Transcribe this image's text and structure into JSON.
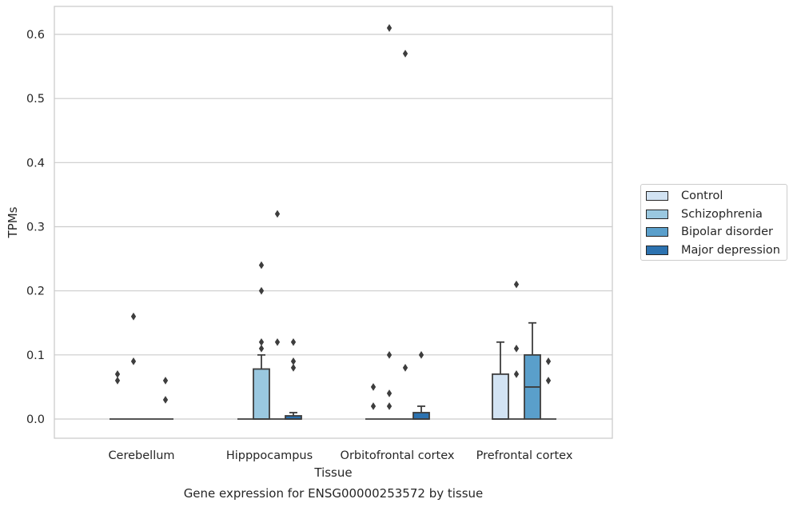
{
  "chart_data": {
    "type": "box",
    "title": "Gene expression for ENSG00000253572 by tissue",
    "xlabel": "Tissue",
    "ylabel": "TPMs",
    "ylim": [
      -0.03,
      0.64
    ],
    "yticks": [
      "0.0",
      "0.1",
      "0.2",
      "0.3",
      "0.4",
      "0.5",
      "0.6"
    ],
    "ytick_values": [
      0,
      0.1,
      0.2,
      0.3,
      0.4,
      0.5,
      0.6
    ],
    "grid": "horizontal",
    "legend_position": "right",
    "categories": [
      "Cerebellum",
      "Hipppocampus",
      "Orbitofrontal cortex",
      "Prefrontal cortex"
    ],
    "series": [
      {
        "name": "Control",
        "color": "#d2e3f3",
        "boxes": [
          {
            "q1": 0,
            "median": 0,
            "q3": 0,
            "whislo": 0,
            "whishi": 0,
            "fliers": [
              0.06,
              0.07
            ]
          },
          {
            "q1": 0,
            "median": 0,
            "q3": 0,
            "whislo": 0,
            "whishi": 0,
            "fliers": []
          },
          {
            "q1": 0,
            "median": 0,
            "q3": 0,
            "whislo": 0,
            "whishi": 0,
            "fliers": [
              0.02,
              0.05
            ]
          },
          {
            "q1": 0,
            "median": 0,
            "q3": 0.07,
            "whislo": 0,
            "whishi": 0.12,
            "fliers": []
          }
        ]
      },
      {
        "name": "Schizophrenia",
        "color": "#9ac8e0",
        "boxes": [
          {
            "q1": 0,
            "median": 0,
            "q3": 0,
            "whislo": 0,
            "whishi": 0,
            "fliers": [
              0.09,
              0.16
            ]
          },
          {
            "q1": 0,
            "median": 0,
            "q3": 0.078,
            "whislo": 0,
            "whishi": 0.1,
            "fliers": [
              0.11,
              0.12,
              0.2,
              0.24
            ]
          },
          {
            "q1": 0,
            "median": 0,
            "q3": 0,
            "whislo": 0,
            "whishi": 0,
            "fliers": [
              0.02,
              0.04,
              0.1,
              0.61
            ]
          },
          {
            "q1": 0,
            "median": 0,
            "q3": 0,
            "whislo": 0,
            "whishi": 0,
            "fliers": [
              0.07,
              0.11,
              0.21
            ]
          }
        ]
      },
      {
        "name": "Bipolar disorder",
        "color": "#5a9fcb",
        "boxes": [
          {
            "q1": 0,
            "median": 0,
            "q3": 0,
            "whislo": 0,
            "whishi": 0,
            "fliers": []
          },
          {
            "q1": 0,
            "median": 0,
            "q3": 0,
            "whislo": 0,
            "whishi": 0,
            "fliers": [
              0.12,
              0.32
            ]
          },
          {
            "q1": 0,
            "median": 0,
            "q3": 0,
            "whislo": 0,
            "whishi": 0,
            "fliers": [
              0.08,
              0.57
            ]
          },
          {
            "q1": 0,
            "median": 0.05,
            "q3": 0.1,
            "whislo": 0,
            "whishi": 0.15,
            "fliers": []
          }
        ]
      },
      {
        "name": "Major depression",
        "color": "#2c72b0",
        "boxes": [
          {
            "q1": 0,
            "median": 0,
            "q3": 0,
            "whislo": 0,
            "whishi": 0,
            "fliers": [
              0.03,
              0.06
            ]
          },
          {
            "q1": 0,
            "median": 0,
            "q3": 0.005,
            "whislo": 0,
            "whishi": 0.01,
            "fliers": [
              0.08,
              0.09,
              0.12
            ]
          },
          {
            "q1": 0,
            "median": 0,
            "q3": 0.01,
            "whislo": 0,
            "whishi": 0.02,
            "fliers": [
              0.1
            ]
          },
          {
            "q1": 0,
            "median": 0,
            "q3": 0,
            "whislo": 0,
            "whishi": 0,
            "fliers": [
              0.06,
              0.09
            ]
          }
        ]
      }
    ]
  }
}
